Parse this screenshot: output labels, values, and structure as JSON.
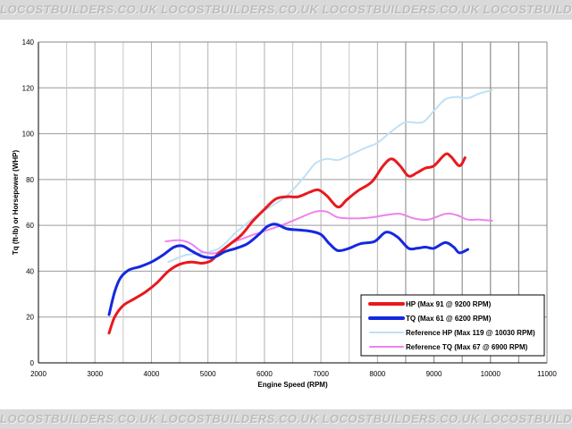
{
  "watermark": {
    "text": "LOCOSTBUILDERS.CO.UK",
    "repeat": 6
  },
  "chart_data": {
    "type": "line",
    "title": "",
    "xlabel": "Engine Speed (RPM)",
    "ylabel": "Tq (ft-lb) or Horsepower (WHP)",
    "xlim": [
      2000,
      11000
    ],
    "ylim": [
      0,
      140
    ],
    "xticks": [
      2000,
      3000,
      4000,
      5000,
      6000,
      7000,
      8000,
      9000,
      10000,
      11000
    ],
    "yticks": [
      0,
      20,
      40,
      60,
      80,
      100,
      120,
      140
    ],
    "grid": true,
    "legend_position": "bottom-right",
    "series": [
      {
        "name": "HP (Max 91 @ 9200 RPM)",
        "color": "#e8191e",
        "width": 3,
        "points": [
          [
            3250,
            13
          ],
          [
            3350,
            20
          ],
          [
            3500,
            25
          ],
          [
            3700,
            28
          ],
          [
            3900,
            31
          ],
          [
            4100,
            35
          ],
          [
            4300,
            40
          ],
          [
            4500,
            43
          ],
          [
            4700,
            44
          ],
          [
            4900,
            43.5
          ],
          [
            5050,
            44.5
          ],
          [
            5200,
            48
          ],
          [
            5400,
            52
          ],
          [
            5600,
            56
          ],
          [
            5800,
            62
          ],
          [
            6000,
            67
          ],
          [
            6200,
            71.5
          ],
          [
            6400,
            72.5
          ],
          [
            6600,
            72.5
          ],
          [
            6800,
            74.5
          ],
          [
            6950,
            75.5
          ],
          [
            7100,
            73
          ],
          [
            7300,
            68
          ],
          [
            7450,
            71
          ],
          [
            7650,
            75
          ],
          [
            7900,
            79
          ],
          [
            8100,
            86
          ],
          [
            8250,
            89
          ],
          [
            8400,
            86
          ],
          [
            8550,
            81.5
          ],
          [
            8700,
            83
          ],
          [
            8850,
            85
          ],
          [
            9000,
            86
          ],
          [
            9200,
            91
          ],
          [
            9300,
            90
          ],
          [
            9450,
            86
          ],
          [
            9550,
            89.5
          ]
        ]
      },
      {
        "name": "TQ (Max 61 @ 6200 RPM)",
        "color": "#1428e0",
        "width": 3,
        "points": [
          [
            3250,
            21
          ],
          [
            3350,
            31
          ],
          [
            3450,
            37
          ],
          [
            3600,
            40.5
          ],
          [
            3800,
            42
          ],
          [
            4000,
            44
          ],
          [
            4200,
            47
          ],
          [
            4400,
            50.5
          ],
          [
            4550,
            51
          ],
          [
            4700,
            49
          ],
          [
            4900,
            46.5
          ],
          [
            5100,
            46
          ],
          [
            5300,
            48.5
          ],
          [
            5500,
            50
          ],
          [
            5700,
            52
          ],
          [
            5900,
            56
          ],
          [
            6050,
            59.5
          ],
          [
            6200,
            60.5
          ],
          [
            6400,
            58.5
          ],
          [
            6600,
            58
          ],
          [
            6800,
            57.5
          ],
          [
            7000,
            56
          ],
          [
            7150,
            52
          ],
          [
            7300,
            49
          ],
          [
            7500,
            50
          ],
          [
            7700,
            52
          ],
          [
            7950,
            53
          ],
          [
            8150,
            57
          ],
          [
            8350,
            55
          ],
          [
            8550,
            50
          ],
          [
            8700,
            50
          ],
          [
            8850,
            50.5
          ],
          [
            9000,
            50
          ],
          [
            9200,
            52.5
          ],
          [
            9350,
            50.5
          ],
          [
            9450,
            48
          ],
          [
            9600,
            49.5
          ]
        ]
      },
      {
        "name": "Reference HP (Max 119 @ 10030 RPM)",
        "color": "#bfe0f5",
        "width": 2,
        "points": [
          [
            4300,
            44
          ],
          [
            4600,
            47
          ],
          [
            4900,
            48
          ],
          [
            5200,
            50
          ],
          [
            5500,
            57
          ],
          [
            5800,
            63
          ],
          [
            6100,
            68
          ],
          [
            6400,
            73
          ],
          [
            6700,
            81
          ],
          [
            6900,
            87
          ],
          [
            7100,
            89
          ],
          [
            7300,
            88.5
          ],
          [
            7500,
            90.5
          ],
          [
            7800,
            94
          ],
          [
            8000,
            96
          ],
          [
            8300,
            102
          ],
          [
            8500,
            105
          ],
          [
            8800,
            105
          ],
          [
            9000,
            110
          ],
          [
            9200,
            115
          ],
          [
            9400,
            116
          ],
          [
            9600,
            115.5
          ],
          [
            9800,
            117.5
          ],
          [
            10030,
            119
          ]
        ]
      },
      {
        "name": "Reference TQ (Max 67 @ 6900 RPM)",
        "color": "#ee82ee",
        "width": 2,
        "points": [
          [
            4250,
            53
          ],
          [
            4500,
            53.5
          ],
          [
            4700,
            52
          ],
          [
            4900,
            48.5
          ],
          [
            5150,
            48
          ],
          [
            5400,
            52
          ],
          [
            5700,
            55
          ],
          [
            6000,
            57.5
          ],
          [
            6300,
            60
          ],
          [
            6600,
            63
          ],
          [
            6900,
            66
          ],
          [
            7100,
            66
          ],
          [
            7300,
            63.5
          ],
          [
            7600,
            63
          ],
          [
            7900,
            63.5
          ],
          [
            8150,
            64.5
          ],
          [
            8400,
            65
          ],
          [
            8650,
            63
          ],
          [
            8900,
            62.5
          ],
          [
            9200,
            65
          ],
          [
            9400,
            64.5
          ],
          [
            9600,
            62.5
          ],
          [
            9800,
            62.5
          ],
          [
            10030,
            62
          ]
        ]
      }
    ]
  }
}
